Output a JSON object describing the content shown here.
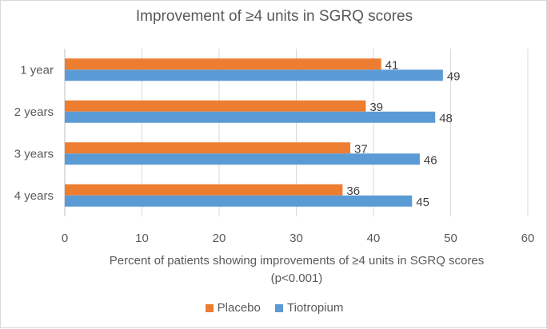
{
  "chart_data": {
    "type": "bar",
    "orientation": "horizontal",
    "title": "Improvement of ≥4 units in SGRQ scores",
    "xlabel": "Percent of patients showing improvements of ≥4 units in SGRQ scores",
    "xlabel_note": "(p<0.001)",
    "ylabel": "",
    "categories": [
      "1 year",
      "2 years",
      "3 years",
      "4 years"
    ],
    "series": [
      {
        "name": "Placebo",
        "values": [
          41,
          39,
          37,
          36
        ],
        "color": "#ED7D31"
      },
      {
        "name": "Tiotropium",
        "values": [
          49,
          48,
          46,
          45
        ],
        "color": "#5B9BD5"
      }
    ],
    "xlim": [
      0,
      60
    ],
    "xticks": [
      0,
      10,
      20,
      30,
      40,
      50,
      60
    ],
    "grid": true,
    "legend_position": "bottom",
    "data_labels": true
  }
}
